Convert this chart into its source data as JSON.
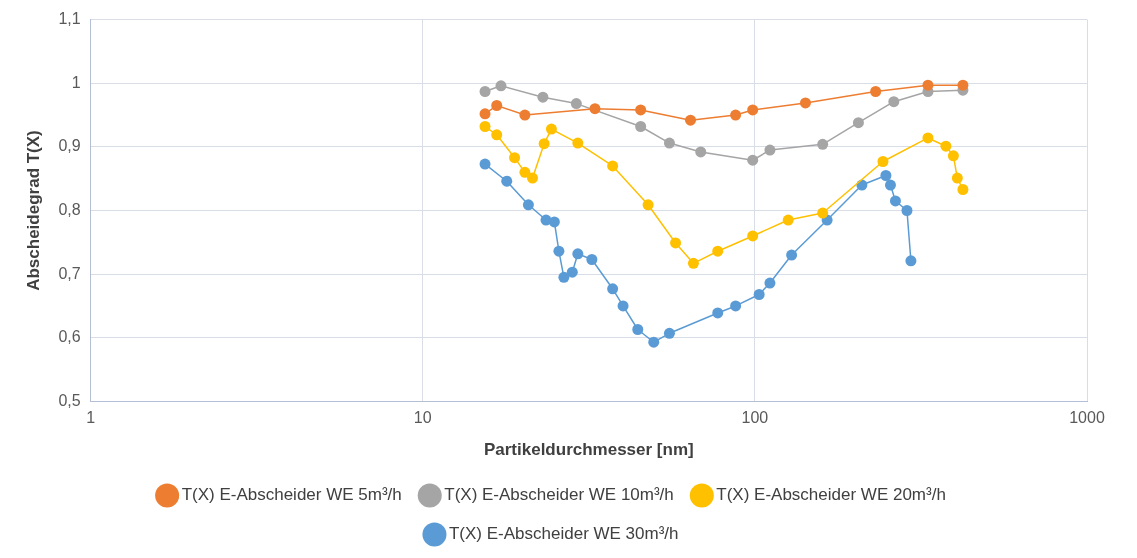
{
  "chart_data": {
    "type": "line",
    "xlabel": "Partikeldurchmesser [nm]",
    "ylabel": "Abscheidegrad T(X)",
    "log": "x",
    "grid": true,
    "legend": "bottom",
    "marker": "circle",
    "line_style": "solid",
    "xlim": [
      1,
      1000
    ],
    "xticks": [
      1,
      10,
      100,
      1000
    ],
    "ylim": [
      0.5,
      1.1
    ],
    "yticks": [
      {
        "value": 0.5,
        "label": "0,5"
      },
      {
        "value": 0.6,
        "label": "0,6"
      },
      {
        "value": 0.7,
        "label": "0,7"
      },
      {
        "value": 0.8,
        "label": "0,8"
      },
      {
        "value": 0.9,
        "label": "0,9"
      },
      1,
      {
        "value": 1.1,
        "label": "1,1"
      }
    ],
    "series": [
      {
        "name": "T(X) E-Abscheider WE 5m³/h",
        "color": "#ed7d31",
        "x": [
          15.4,
          16.7,
          20.3,
          33,
          45.3,
          64,
          87.5,
          98.5,
          142,
          231,
          332,
          423
        ],
        "values": [
          0.952,
          0.965,
          0.95,
          0.96,
          0.958,
          0.942,
          0.95,
          0.958,
          0.969,
          0.987,
          0.997,
          0.997
        ]
      },
      {
        "name": "T(X) E-Abscheider WE 10m³/h",
        "color": "#a5a5a5",
        "x": [
          15.4,
          17.2,
          23,
          29,
          45.3,
          55.3,
          68.7,
          98.5,
          111,
          160,
          205,
          262,
          332,
          423
        ],
        "values": [
          0.987,
          0.996,
          0.978,
          0.968,
          0.932,
          0.906,
          0.892,
          0.879,
          0.895,
          0.904,
          0.938,
          0.971,
          0.987,
          0.989
        ]
      },
      {
        "name": "T(X) E-Abscheider WE 20m³/h",
        "color": "#ffc000",
        "x": [
          15.4,
          16.7,
          18.9,
          20.3,
          21.4,
          23.2,
          24.4,
          29.3,
          37.3,
          47.7,
          57.7,
          65.3,
          77.3,
          98.5,
          126,
          160,
          243,
          332,
          376,
          396,
          407,
          423
        ],
        "values": [
          0.932,
          0.919,
          0.883,
          0.86,
          0.851,
          0.905,
          0.928,
          0.906,
          0.87,
          0.809,
          0.749,
          0.717,
          0.736,
          0.76,
          0.785,
          0.796,
          0.877,
          0.914,
          0.901,
          0.886,
          0.851,
          0.833
        ]
      },
      {
        "name": "T(X) E-Abscheider WE 30m³/h",
        "color": "#5b9bd5",
        "x": [
          15.4,
          17.9,
          20.8,
          23.5,
          24.9,
          25.7,
          26.6,
          28.2,
          29.3,
          32.3,
          37.3,
          40.1,
          44.4,
          49.6,
          55.3,
          77.3,
          87.5,
          103,
          111,
          129,
          165,
          210,
          248,
          256,
          265,
          287,
          295
        ],
        "values": [
          0.873,
          0.846,
          0.809,
          0.785,
          0.782,
          0.736,
          0.695,
          0.703,
          0.732,
          0.723,
          0.677,
          0.65,
          0.613,
          0.593,
          0.607,
          0.639,
          0.65,
          0.668,
          0.686,
          0.73,
          0.785,
          0.84,
          0.855,
          0.84,
          0.815,
          0.8,
          0.721
        ]
      }
    ]
  }
}
